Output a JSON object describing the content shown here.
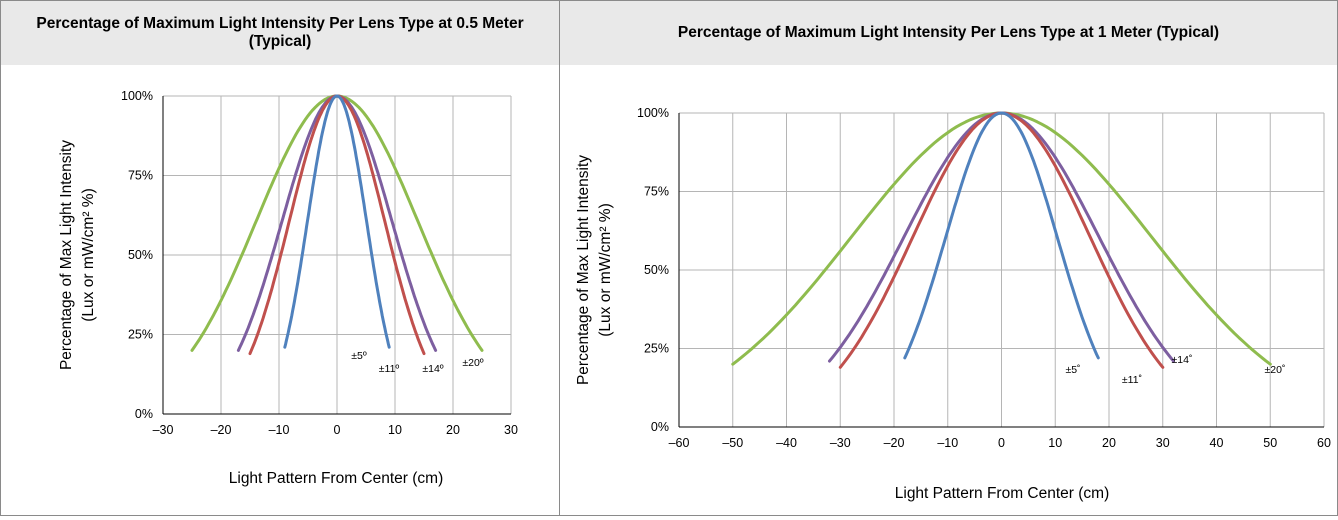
{
  "headers": {
    "left": "Percentage of Maximum Light Intensity Per Lens Type at 0.5 Meter (Typical)",
    "right": "Percentage of Maximum Light Intensity Per Lens Type at 1 Meter (Typical)"
  },
  "chart_data": [
    {
      "type": "line",
      "title": "Percentage of Maximum Light Intensity Per Lens Type at 0.5 Meter (Typical)",
      "xlabel": "Light Pattern From Center (cm)",
      "ylabel_line1": "Percentage of Max Light Intensity",
      "ylabel_line2": "(Lux or mW/cm² %)",
      "xlim": [
        -30,
        30
      ],
      "ylim": [
        0,
        100
      ],
      "xticks": [
        -30,
        -20,
        -10,
        0,
        10,
        20,
        30
      ],
      "xtick_labels": [
        "–30",
        "–20",
        "–10",
        "0",
        "10",
        "20",
        "30"
      ],
      "yticks": [
        0,
        25,
        50,
        75,
        100
      ],
      "ytick_labels": [
        "0%",
        "25%",
        "50%",
        "75%",
        "100%"
      ],
      "grid": true,
      "series": [
        {
          "name": "±20º",
          "color": "#8fbc4e",
          "half_range": 25,
          "end_value": 20
        },
        {
          "name": "±14º",
          "color": "#7d5fa0",
          "half_range": 17,
          "end_value": 20
        },
        {
          "name": "±11º",
          "color": "#c0504d",
          "half_range": 15,
          "end_value": 19
        },
        {
          "name": "±5º",
          "color": "#4f81bd",
          "half_range": 9,
          "end_value": 21
        }
      ],
      "annotations": [
        "±5º",
        "±11º",
        "±14º",
        "±20º"
      ]
    },
    {
      "type": "line",
      "title": "Percentage of Maximum Light Intensity Per Lens Type at 1 Meter (Typical)",
      "xlabel": "Light Pattern From Center (cm)",
      "ylabel_line1": "Percentage of Max Light Intensity",
      "ylabel_line2": "(Lux or mW/cm² %)",
      "xlim": [
        -60,
        60
      ],
      "ylim": [
        0,
        100
      ],
      "xticks": [
        -60,
        -50,
        -40,
        -30,
        -20,
        -10,
        0,
        10,
        20,
        30,
        40,
        50,
        60
      ],
      "xtick_labels": [
        "–60",
        "–50",
        "–40",
        "–30",
        "–20",
        "–10",
        "0",
        "10",
        "20",
        "30",
        "40",
        "50",
        "60"
      ],
      "yticks": [
        0,
        25,
        50,
        75,
        100
      ],
      "ytick_labels": [
        "0%",
        "25%",
        "50%",
        "75%",
        "100%"
      ],
      "grid": true,
      "series": [
        {
          "name": "±20˚",
          "color": "#8fbc4e",
          "half_range": 50,
          "end_value": 20
        },
        {
          "name": "±14˚",
          "color": "#7d5fa0",
          "half_range": 32,
          "end_value": 21
        },
        {
          "name": "±11˚",
          "color": "#c0504d",
          "half_range": 30,
          "end_value": 19
        },
        {
          "name": "±5˚",
          "color": "#4f81bd",
          "half_range": 18,
          "end_value": 22
        }
      ],
      "annotations": [
        "±5˚",
        "±11˚",
        "±14˚",
        "±20˚"
      ]
    }
  ]
}
